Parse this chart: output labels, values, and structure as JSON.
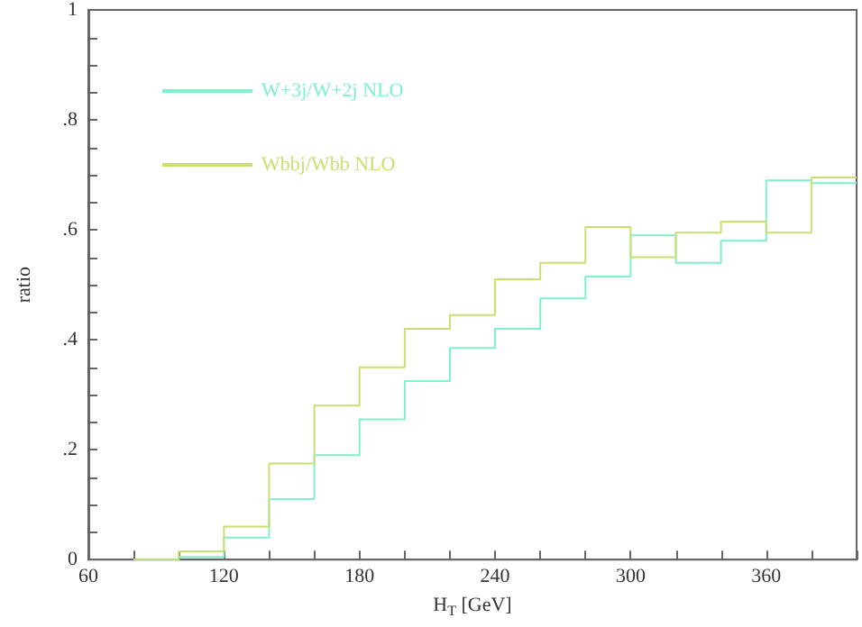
{
  "chart_data": {
    "type": "histogram",
    "xlabel": "H$_{T}$ [GeV]",
    "ylabel": "ratio",
    "bins": [
      80,
      100,
      120,
      140,
      160,
      180,
      200,
      220,
      240,
      260,
      280,
      300,
      320,
      340,
      360,
      380,
      400
    ],
    "series": [
      {
        "name": "W+3j/W+2j NLO",
        "color": "#80f0c8",
        "values": [
          0,
          0.005,
          0.04,
          0.11,
          0.19,
          0.255,
          0.325,
          0.385,
          0.42,
          0.475,
          0.515,
          0.59,
          0.54,
          0.58,
          0.69,
          0.685
        ]
      },
      {
        "name": "Wbbj/Wbb NLO",
        "color": "#c8e070",
        "values": [
          0,
          0.015,
          0.06,
          0.175,
          0.28,
          0.35,
          0.42,
          0.445,
          0.51,
          0.54,
          0.605,
          0.55,
          0.595,
          0.615,
          0.595,
          0.695
        ]
      }
    ],
    "xlim": [
      60,
      400
    ],
    "xticks": [
      60,
      {
        "value": 80,
        "label": null
      },
      {
        "value": 100,
        "label": null
      },
      120,
      {
        "value": 140,
        "label": null
      },
      {
        "value": 160,
        "label": null
      },
      180,
      {
        "value": 200,
        "label": null
      },
      {
        "value": 220,
        "label": null
      },
      240,
      {
        "value": 260,
        "label": null
      },
      {
        "value": 280,
        "label": null
      },
      300,
      {
        "value": 320,
        "label": null
      },
      {
        "value": 340,
        "label": null
      },
      360,
      {
        "value": 380,
        "label": null
      },
      {
        "value": 400,
        "label": null
      }
    ],
    "ylim": [
      0,
      1
    ],
    "yticks": [
      {
        "value": 0,
        "label": "0"
      },
      {
        "value": 0.05,
        "label": null
      },
      {
        "value": 0.1,
        "label": null
      },
      {
        "value": 0.15,
        "label": null
      },
      {
        "value": 0.2,
        "label": ".2"
      },
      {
        "value": 0.25,
        "label": null
      },
      {
        "value": 0.3,
        "label": null
      },
      {
        "value": 0.35,
        "label": null
      },
      {
        "value": 0.4,
        "label": ".4"
      },
      {
        "value": 0.45,
        "label": null
      },
      {
        "value": 0.5,
        "label": null
      },
      {
        "value": 0.55,
        "label": null
      },
      {
        "value": 0.6,
        "label": ".6"
      },
      {
        "value": 0.65,
        "label": null
      },
      {
        "value": 0.7,
        "label": null
      },
      {
        "value": 0.75,
        "label": null
      },
      {
        "value": 0.8,
        "label": ".8"
      },
      {
        "value": 0.85,
        "label": null
      },
      {
        "value": 0.9,
        "label": null
      },
      {
        "value": 0.95,
        "label": null
      },
      {
        "value": 1,
        "label": "1"
      }
    ],
    "legend": "top left",
    "grid": false
  }
}
